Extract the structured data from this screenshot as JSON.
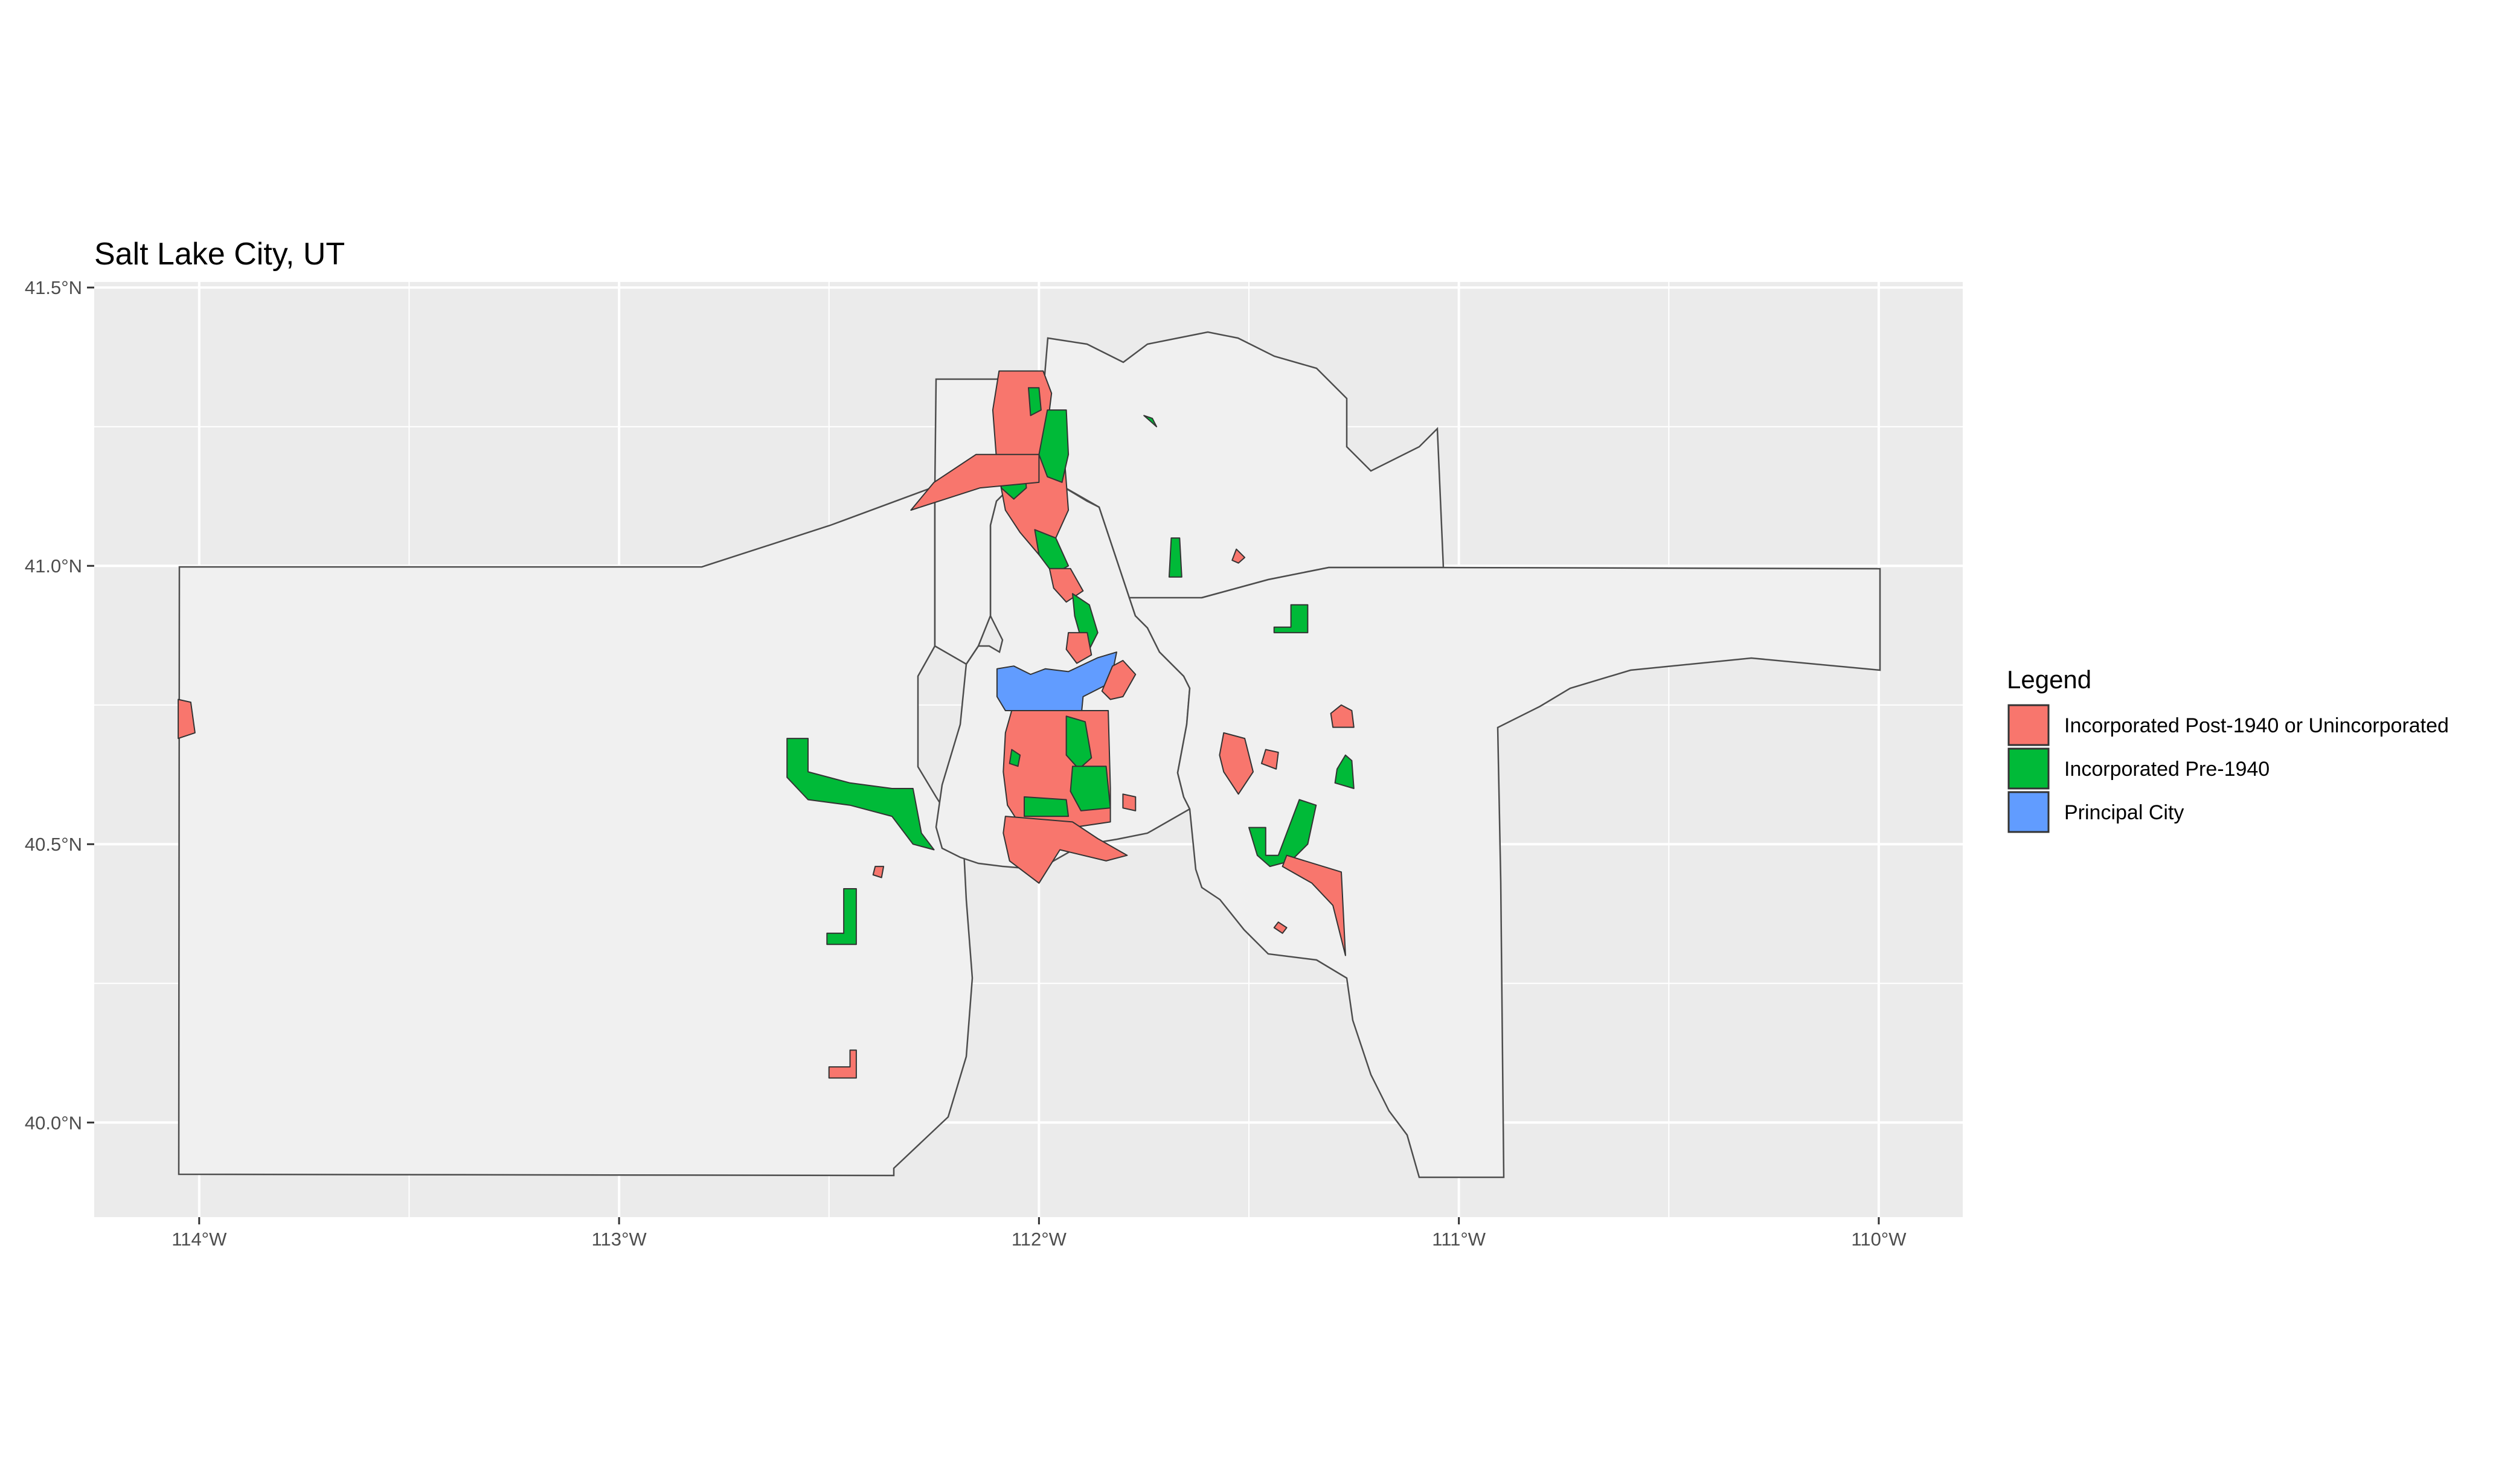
{
  "chart_data": {
    "type": "map",
    "title": "Salt Lake City, UT",
    "colors": {
      "panel_background": "#ebebeb",
      "grid": "#ffffff",
      "region_fill": "#f0f0f0",
      "region_border": "#4d4d4d"
    },
    "x_axis": {
      "range": [
        -114.25,
        -109.8
      ],
      "ticks": [
        {
          "value": -114,
          "label": "114°W"
        },
        {
          "value": -113,
          "label": "113°W"
        },
        {
          "value": -112,
          "label": "112°W"
        },
        {
          "value": -111,
          "label": "111°W"
        },
        {
          "value": -110,
          "label": "110°W"
        }
      ]
    },
    "y_axis": {
      "range": [
        39.83,
        41.51
      ],
      "ticks": [
        {
          "value": 40.0,
          "label": "40.0°N"
        },
        {
          "value": 40.5,
          "label": "40.5°N"
        },
        {
          "value": 41.0,
          "label": "41.0°N"
        },
        {
          "value": 41.5,
          "label": "41.5°N"
        }
      ]
    },
    "legend": {
      "title": "Legend",
      "position": "right",
      "items": [
        {
          "label": "Incorporated Post-1940 or Unincorporated",
          "color": "#f8766d"
        },
        {
          "label": "Incorporated Pre-1940",
          "color": "#00ba38"
        },
        {
          "label": "Principal City",
          "color": "#619cff"
        }
      ]
    },
    "regions": [
      {
        "category": 2,
        "coords": [
          [
            -112.1,
            40.815
          ],
          [
            -112.1,
            40.765
          ],
          [
            -112.08,
            40.74
          ],
          [
            -111.97,
            40.74
          ],
          [
            -111.9,
            40.725
          ],
          [
            -111.895,
            40.765
          ],
          [
            -111.83,
            40.79
          ],
          [
            -111.815,
            40.845
          ],
          [
            -111.86,
            40.835
          ],
          [
            -111.93,
            40.81
          ],
          [
            -111.985,
            40.815
          ],
          [
            -112.02,
            40.805
          ],
          [
            -112.06,
            40.82
          ]
        ]
      },
      {
        "category": 0,
        "coords": [
          [
            -112.065,
            40.74
          ],
          [
            -111.835,
            40.74
          ],
          [
            -111.83,
            40.6
          ],
          [
            -111.83,
            40.54
          ],
          [
            -111.92,
            40.53
          ],
          [
            -112.045,
            40.535
          ],
          [
            -112.075,
            40.57
          ],
          [
            -112.085,
            40.63
          ],
          [
            -112.08,
            40.7
          ]
        ]
      },
      {
        "category": 1,
        "coords": [
          [
            -111.935,
            40.73
          ],
          [
            -111.89,
            40.72
          ],
          [
            -111.875,
            40.655
          ],
          [
            -111.905,
            40.635
          ],
          [
            -111.935,
            40.66
          ]
        ]
      },
      {
        "category": 1,
        "coords": [
          [
            -111.92,
            40.64
          ],
          [
            -111.84,
            40.64
          ],
          [
            -111.83,
            40.565
          ],
          [
            -111.9,
            40.56
          ],
          [
            -111.925,
            40.595
          ]
        ]
      },
      {
        "category": 1,
        "coords": [
          [
            -112.035,
            40.585
          ],
          [
            -111.935,
            40.58
          ],
          [
            -111.93,
            40.55
          ],
          [
            -112.035,
            40.55
          ]
        ]
      },
      {
        "category": 1,
        "coords": [
          [
            -112.065,
            40.67
          ],
          [
            -112.045,
            40.66
          ],
          [
            -112.05,
            40.64
          ],
          [
            -112.07,
            40.645
          ]
        ]
      },
      {
        "category": 0,
        "coords": [
          [
            -112.08,
            40.55
          ],
          [
            -111.92,
            40.54
          ],
          [
            -111.86,
            40.51
          ],
          [
            -111.79,
            40.48
          ],
          [
            -111.84,
            40.47
          ],
          [
            -111.95,
            40.49
          ],
          [
            -112.0,
            40.43
          ],
          [
            -112.07,
            40.47
          ],
          [
            -112.085,
            40.52
          ]
        ]
      },
      {
        "category": 0,
        "coords": [
          [
            -112.095,
            41.35
          ],
          [
            -111.99,
            41.35
          ],
          [
            -111.97,
            41.31
          ],
          [
            -111.98,
            41.25
          ],
          [
            -111.94,
            41.2
          ],
          [
            -111.93,
            41.1
          ],
          [
            -111.96,
            41.05
          ],
          [
            -112.0,
            41.02
          ],
          [
            -112.045,
            41.06
          ],
          [
            -112.08,
            41.1
          ],
          [
            -112.1,
            41.18
          ],
          [
            -112.11,
            41.28
          ]
        ]
      },
      {
        "category": 1,
        "coords": [
          [
            -111.98,
            41.28
          ],
          [
            -111.935,
            41.28
          ],
          [
            -111.93,
            41.2
          ],
          [
            -111.945,
            41.15
          ],
          [
            -111.98,
            41.16
          ],
          [
            -112.0,
            41.2
          ]
        ]
      },
      {
        "category": 1,
        "coords": [
          [
            -112.08,
            41.19
          ],
          [
            -112.035,
            41.19
          ],
          [
            -112.03,
            41.14
          ],
          [
            -112.06,
            41.12
          ],
          [
            -112.09,
            41.14
          ]
        ]
      },
      {
        "category": 1,
        "coords": [
          [
            -112.025,
            41.32
          ],
          [
            -112.0,
            41.32
          ],
          [
            -111.995,
            41.28
          ],
          [
            -112.02,
            41.27
          ]
        ]
      },
      {
        "category": 1,
        "coords": [
          [
            -112.01,
            41.065
          ],
          [
            -111.96,
            41.05
          ],
          [
            -111.93,
            41.0
          ],
          [
            -111.965,
            40.985
          ],
          [
            -112.0,
            41.02
          ]
        ]
      },
      {
        "category": 0,
        "coords": [
          [
            -111.975,
            40.995
          ],
          [
            -111.925,
            40.995
          ],
          [
            -111.895,
            40.955
          ],
          [
            -111.935,
            40.935
          ],
          [
            -111.965,
            40.96
          ]
        ]
      },
      {
        "category": 1,
        "coords": [
          [
            -111.92,
            40.95
          ],
          [
            -111.88,
            40.93
          ],
          [
            -111.86,
            40.88
          ],
          [
            -111.88,
            40.85
          ],
          [
            -111.9,
            40.87
          ],
          [
            -111.915,
            40.91
          ]
        ]
      },
      {
        "category": 0,
        "coords": [
          [
            -111.93,
            40.88
          ],
          [
            -111.885,
            40.88
          ],
          [
            -111.875,
            40.84
          ],
          [
            -111.91,
            40.825
          ],
          [
            -111.935,
            40.85
          ]
        ]
      },
      {
        "category": 0,
        "coords": [
          [
            -111.825,
            40.82
          ],
          [
            -111.8,
            40.83
          ],
          [
            -111.77,
            40.805
          ],
          [
            -111.8,
            40.765
          ],
          [
            -111.83,
            40.76
          ],
          [
            -111.85,
            40.775
          ]
        ]
      },
      {
        "category": 0,
        "coords": [
          [
            -114.05,
            40.76
          ],
          [
            -114.02,
            40.755
          ],
          [
            -114.01,
            40.7
          ],
          [
            -114.05,
            40.69
          ]
        ]
      },
      {
        "category": 0,
        "coords": [
          [
            -112.305,
            41.1
          ],
          [
            -112.25,
            41.15
          ],
          [
            -112.15,
            41.2
          ],
          [
            -112.0,
            41.2
          ],
          [
            -112.0,
            41.15
          ],
          [
            -112.14,
            41.14
          ]
        ]
      },
      {
        "category": 1,
        "coords": [
          [
            -112.6,
            40.69
          ],
          [
            -112.55,
            40.69
          ],
          [
            -112.55,
            40.63
          ],
          [
            -112.45,
            40.61
          ],
          [
            -112.35,
            40.6
          ],
          [
            -112.3,
            40.6
          ],
          [
            -112.28,
            40.52
          ],
          [
            -112.25,
            40.49
          ],
          [
            -112.3,
            40.5
          ],
          [
            -112.35,
            40.55
          ],
          [
            -112.45,
            40.57
          ],
          [
            -112.55,
            40.58
          ],
          [
            -112.6,
            40.62
          ]
        ]
      },
      {
        "category": 1,
        "coords": [
          [
            -112.465,
            40.42
          ],
          [
            -112.435,
            40.42
          ],
          [
            -112.435,
            40.32
          ],
          [
            -112.505,
            40.32
          ],
          [
            -112.505,
            40.34
          ],
          [
            -112.465,
            40.34
          ]
        ]
      },
      {
        "category": 0,
        "coords": [
          [
            -112.45,
            40.13
          ],
          [
            -112.435,
            40.13
          ],
          [
            -112.435,
            40.08
          ],
          [
            -112.5,
            40.08
          ],
          [
            -112.5,
            40.1
          ],
          [
            -112.45,
            40.1
          ]
        ]
      },
      {
        "category": 0,
        "coords": [
          [
            -112.39,
            40.46
          ],
          [
            -112.37,
            40.46
          ],
          [
            -112.375,
            40.44
          ],
          [
            -112.395,
            40.445
          ]
        ]
      },
      {
        "category": 1,
        "coords": [
          [
            -111.69,
            40.98
          ],
          [
            -111.66,
            40.98
          ],
          [
            -111.665,
            41.05
          ],
          [
            -111.685,
            41.05
          ]
        ]
      },
      {
        "category": 1,
        "coords": [
          [
            -111.75,
            41.27
          ],
          [
            -111.72,
            41.25
          ],
          [
            -111.73,
            41.265
          ]
        ]
      },
      {
        "category": 0,
        "coords": [
          [
            -111.53,
            41.03
          ],
          [
            -111.51,
            41.015
          ],
          [
            -111.525,
            41.005
          ],
          [
            -111.54,
            41.01
          ]
        ]
      },
      {
        "category": 1,
        "coords": [
          [
            -111.44,
            40.89
          ],
          [
            -111.4,
            40.89
          ],
          [
            -111.4,
            40.93
          ],
          [
            -111.36,
            40.93
          ],
          [
            -111.36,
            40.88
          ],
          [
            -111.44,
            40.88
          ]
        ]
      },
      {
        "category": 0,
        "coords": [
          [
            -111.56,
            40.7
          ],
          [
            -111.51,
            40.69
          ],
          [
            -111.49,
            40.63
          ],
          [
            -111.525,
            40.59
          ],
          [
            -111.56,
            40.63
          ],
          [
            -111.57,
            40.66
          ]
        ]
      },
      {
        "category": 0,
        "coords": [
          [
            -111.46,
            40.67
          ],
          [
            -111.43,
            40.665
          ],
          [
            -111.435,
            40.635
          ],
          [
            -111.47,
            40.645
          ]
        ]
      },
      {
        "category": 0,
        "coords": [
          [
            -111.28,
            40.75
          ],
          [
            -111.255,
            40.74
          ],
          [
            -111.25,
            40.71
          ],
          [
            -111.3,
            40.71
          ],
          [
            -111.305,
            40.735
          ]
        ]
      },
      {
        "category": 1,
        "coords": [
          [
            -111.27,
            40.66
          ],
          [
            -111.255,
            40.65
          ],
          [
            -111.25,
            40.6
          ],
          [
            -111.295,
            40.61
          ],
          [
            -111.29,
            40.635
          ]
        ]
      },
      {
        "category": 1,
        "coords": [
          [
            -111.5,
            40.53
          ],
          [
            -111.46,
            40.53
          ],
          [
            -111.46,
            40.48
          ],
          [
            -111.43,
            40.48
          ],
          [
            -111.38,
            40.58
          ],
          [
            -111.34,
            40.57
          ],
          [
            -111.36,
            40.5
          ],
          [
            -111.4,
            40.47
          ],
          [
            -111.45,
            40.46
          ],
          [
            -111.48,
            40.48
          ]
        ]
      },
      {
        "category": 0,
        "coords": [
          [
            -111.41,
            40.48
          ],
          [
            -111.28,
            40.45
          ],
          [
            -111.27,
            40.3
          ],
          [
            -111.3,
            40.39
          ],
          [
            -111.35,
            40.43
          ],
          [
            -111.42,
            40.46
          ]
        ]
      },
      {
        "category": 0,
        "coords": [
          [
            -111.8,
            40.59
          ],
          [
            -111.77,
            40.585
          ],
          [
            -111.77,
            40.56
          ],
          [
            -111.8,
            40.565
          ]
        ]
      },
      {
        "category": 0,
        "coords": [
          [
            -111.43,
            40.36
          ],
          [
            -111.41,
            40.35
          ],
          [
            -111.42,
            40.34
          ],
          [
            -111.44,
            40.35
          ]
        ]
      }
    ]
  }
}
